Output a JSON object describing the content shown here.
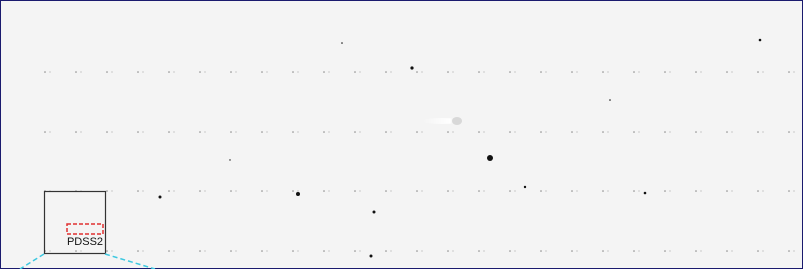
{
  "image": {
    "label": "PDSS2"
  }
}
